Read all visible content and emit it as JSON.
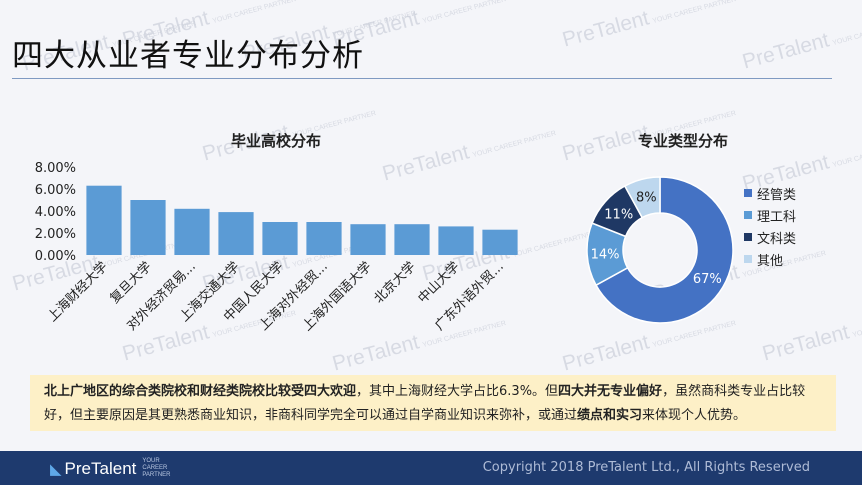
{
  "page": {
    "title": "四大从业者专业分布分析",
    "watermark_text": "PreTalent",
    "watermark_tag": "YOUR CAREER PARTNER"
  },
  "footer": {
    "logo_text": "PreTalent",
    "tagline_lines": [
      "YOUR",
      "CAREER",
      "PARTNER"
    ],
    "copyright": "Copyright 2018 PreTalent Ltd., All Rights Reserved"
  },
  "note": {
    "segments": [
      {
        "text": "北上广地区的综合类院校和财经类院校比较受四大欢迎",
        "bold": true
      },
      {
        "text": "，其中上海财经大学占比6.3%。但",
        "bold": false
      },
      {
        "text": "四大并无专业偏好",
        "bold": true
      },
      {
        "text": "，虽然商科类专业占比较好，但主要原因是其更熟悉商业知识，非商科同学完全可以通过自学商业知识来弥补，或通过",
        "bold": false
      },
      {
        "text": "绩点和实习",
        "bold": true
      },
      {
        "text": "来体现个人优势。",
        "bold": false
      }
    ]
  },
  "chart_data": [
    {
      "type": "bar",
      "title": "毕业高校分布",
      "categories": [
        "上海财经大学",
        "复旦大学",
        "对外经济贸易...",
        "上海交通大学",
        "中国人民大学",
        "上海对外经贸...",
        "上海外国语大学",
        "北京大学",
        "中山大学",
        "广东外语外贸..."
      ],
      "values": [
        6.3,
        5.0,
        4.2,
        3.9,
        3.0,
        3.0,
        2.8,
        2.8,
        2.6,
        2.3
      ],
      "yticks": [
        "0.00%",
        "2.00%",
        "4.00%",
        "6.00%",
        "8.00%"
      ],
      "ylim": [
        0,
        8
      ],
      "color": "#5b9bd5"
    },
    {
      "type": "pie",
      "title": "专业类型分布",
      "labels": [
        "经管类",
        "理工科",
        "文科类",
        "其他"
      ],
      "values": [
        67,
        14,
        11,
        8
      ],
      "value_labels": [
        "67%",
        "14%",
        "11%",
        "8%"
      ],
      "colors": [
        "#4472c4",
        "#5b9bd5",
        "#1f3864",
        "#bdd7ee"
      ]
    }
  ]
}
